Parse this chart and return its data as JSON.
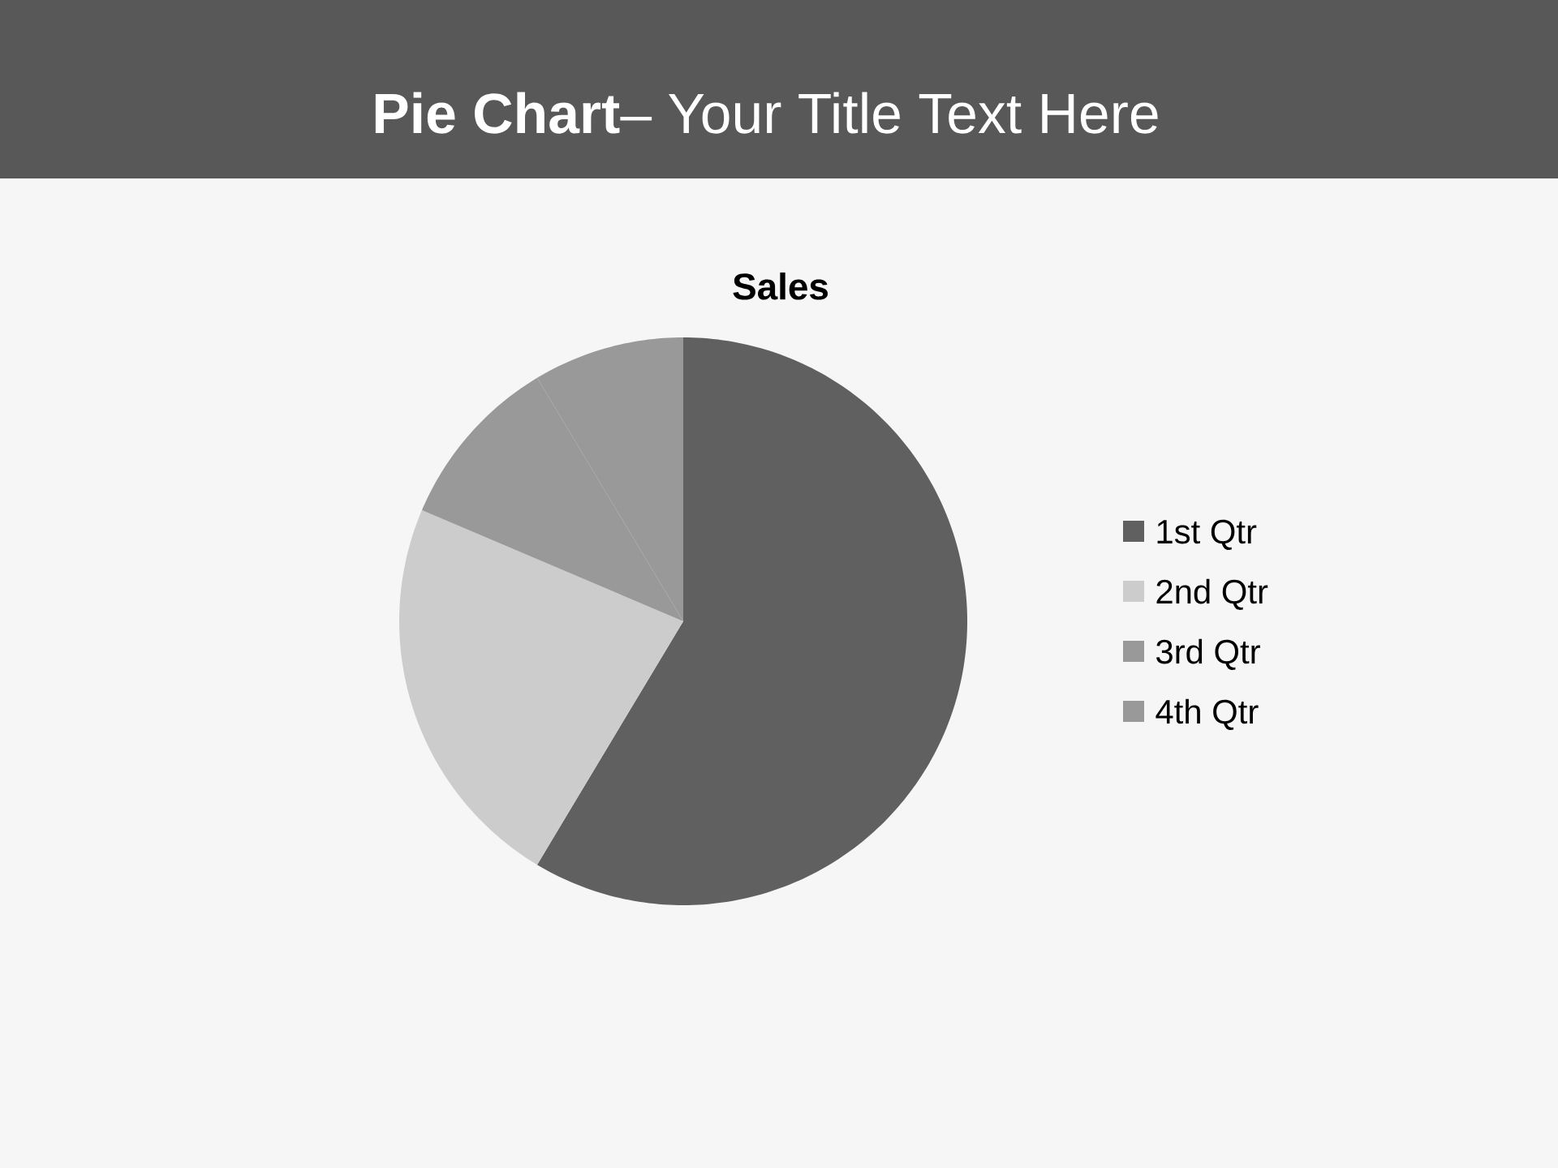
{
  "chart_data": {
    "type": "pie",
    "title": "**Pie Chart**– Your Title Text Here",
    "subtitle": "Sales",
    "categories": [
      "1st Qtr",
      "2nd Qtr",
      "3rd Qtr",
      "4th Qtr"
    ],
    "values": [
      58.6,
      22.8,
      10.0,
      8.6
    ],
    "colors": [
      "#606060",
      "#cccccc",
      "#999999",
      "#999999"
    ],
    "legend": "right"
  }
}
